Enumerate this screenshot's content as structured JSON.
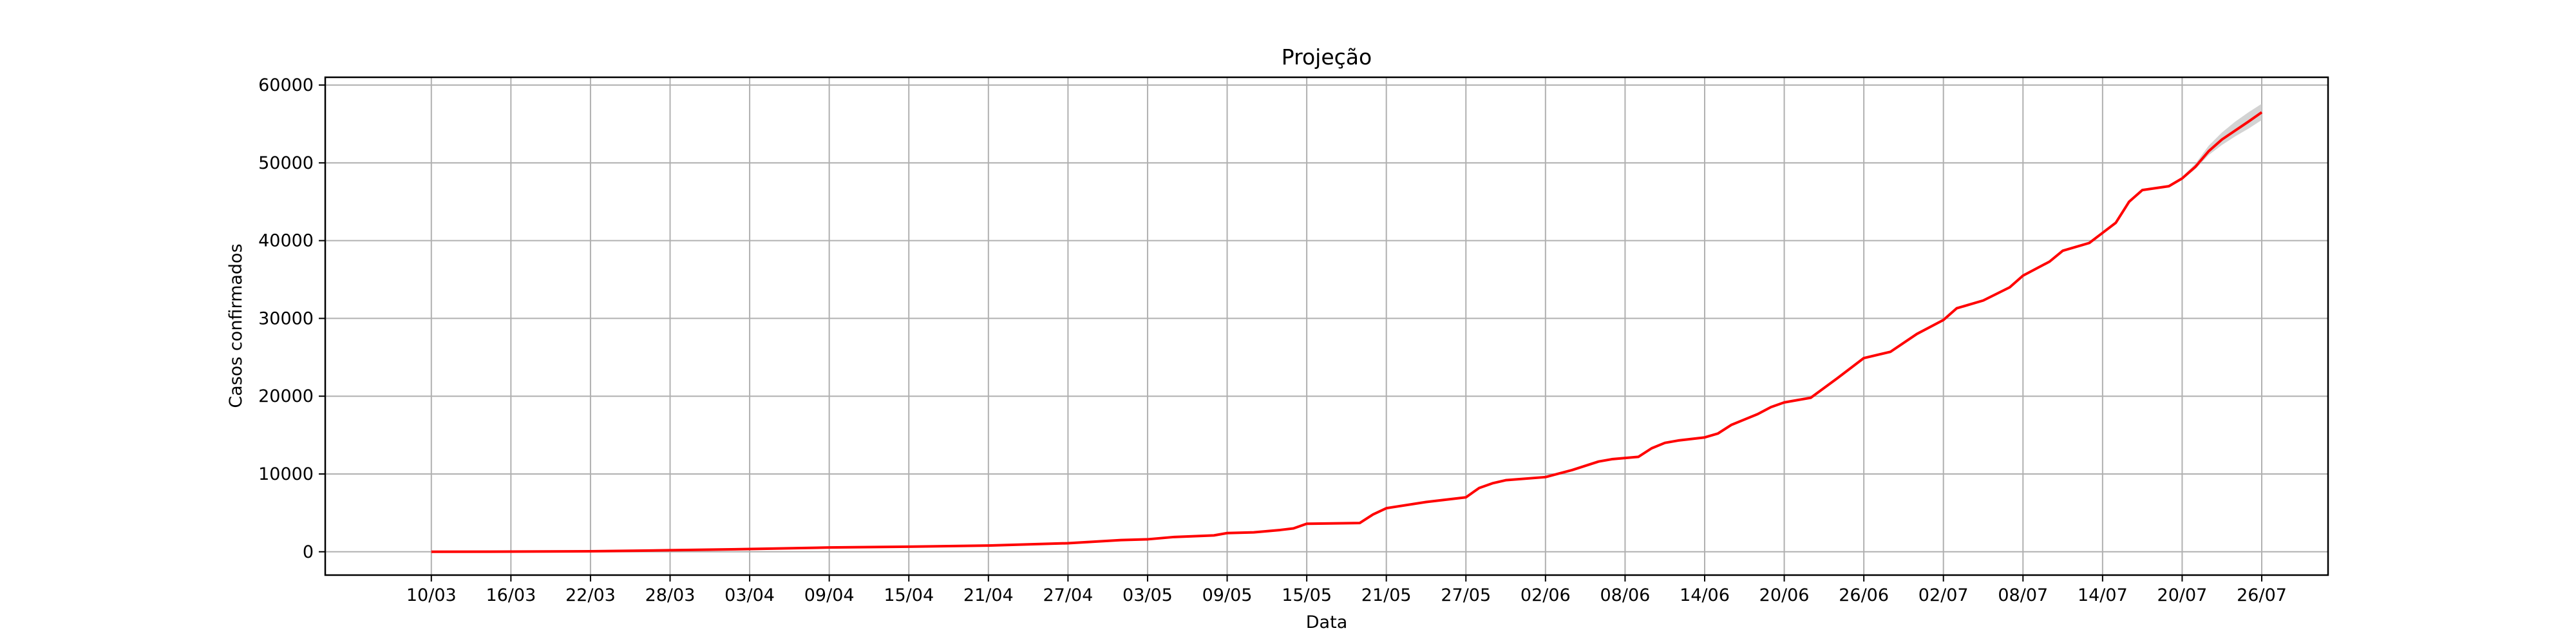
{
  "chart_data": {
    "type": "line",
    "title": "Projeção",
    "xlabel": "Data",
    "ylabel": "Casos confirmados",
    "grid": true,
    "legend": "none",
    "x_start": "2020-03-10",
    "x_end": "2020-07-26",
    "xlim": [
      "2020-03-02",
      "2020-07-31"
    ],
    "ylim": [
      -3000,
      61000
    ],
    "x_tick_labels": [
      "10/03",
      "16/03",
      "22/03",
      "28/03",
      "03/04",
      "09/04",
      "15/04",
      "21/04",
      "27/04",
      "03/05",
      "09/05",
      "15/05",
      "21/05",
      "27/05",
      "02/06",
      "08/06",
      "14/06",
      "20/06",
      "26/06",
      "02/07",
      "08/07",
      "14/07",
      "20/07",
      "26/07"
    ],
    "y_ticks": [
      0,
      10000,
      20000,
      30000,
      40000,
      50000,
      60000
    ],
    "y_tick_labels": [
      "0",
      "10000",
      "20000",
      "30000",
      "40000",
      "50000",
      "60000"
    ],
    "series": [
      {
        "color": "#ff0000",
        "points": [
          [
            "10/03",
            0
          ],
          [
            "16/03",
            20
          ],
          [
            "22/03",
            60
          ],
          [
            "26/03",
            150
          ],
          [
            "28/03",
            200
          ],
          [
            "03/04",
            350
          ],
          [
            "09/04",
            550
          ],
          [
            "15/04",
            650
          ],
          [
            "21/04",
            800
          ],
          [
            "27/04",
            1100
          ],
          [
            "01/05",
            1500
          ],
          [
            "03/05",
            1600
          ],
          [
            "05/05",
            1900
          ],
          [
            "08/05",
            2100
          ],
          [
            "09/05",
            2400
          ],
          [
            "11/05",
            2500
          ],
          [
            "13/05",
            2800
          ],
          [
            "14/05",
            3000
          ],
          [
            "15/05",
            3600
          ],
          [
            "19/05",
            3700
          ],
          [
            "20/05",
            4800
          ],
          [
            "21/05",
            5600
          ],
          [
            "24/05",
            6400
          ],
          [
            "27/05",
            7000
          ],
          [
            "28/05",
            8200
          ],
          [
            "29/05",
            8800
          ],
          [
            "30/05",
            9200
          ],
          [
            "02/06",
            9600
          ],
          [
            "04/06",
            10500
          ],
          [
            "06/06",
            11600
          ],
          [
            "07/06",
            11900
          ],
          [
            "09/06",
            12200
          ],
          [
            "10/06",
            13300
          ],
          [
            "11/06",
            14000
          ],
          [
            "12/06",
            14300
          ],
          [
            "14/06",
            14700
          ],
          [
            "15/06",
            15200
          ],
          [
            "16/06",
            16300
          ],
          [
            "17/06",
            17000
          ],
          [
            "18/06",
            17700
          ],
          [
            "19/06",
            18600
          ],
          [
            "20/06",
            19200
          ],
          [
            "22/06",
            19800
          ],
          [
            "24/06",
            22300
          ],
          [
            "26/06",
            24900
          ],
          [
            "28/06",
            25700
          ],
          [
            "30/06",
            28000
          ],
          [
            "02/07",
            29800
          ],
          [
            "03/07",
            31300
          ],
          [
            "05/07",
            32300
          ],
          [
            "07/07",
            34000
          ],
          [
            "08/07",
            35500
          ],
          [
            "10/07",
            37300
          ],
          [
            "11/07",
            38700
          ],
          [
            "13/07",
            39700
          ],
          [
            "14/07",
            41000
          ],
          [
            "15/07",
            42300
          ],
          [
            "16/07",
            45000
          ],
          [
            "17/07",
            46500
          ],
          [
            "19/07",
            47000
          ],
          [
            "20/07",
            48000
          ],
          [
            "21/07",
            49500
          ],
          [
            "22/07",
            51500
          ],
          [
            "23/07",
            53000
          ],
          [
            "25/07",
            55300
          ],
          [
            "26/07",
            56500
          ]
        ]
      }
    ],
    "confidence_band": {
      "color": "#c8c8c8",
      "points": [
        [
          "20/07",
          47800,
          48200
        ],
        [
          "21/07",
          49200,
          49900
        ],
        [
          "22/07",
          51000,
          52200
        ],
        [
          "23/07",
          52300,
          53900
        ],
        [
          "24/07",
          53400,
          55300
        ],
        [
          "25/07",
          54400,
          56500
        ],
        [
          "26/07",
          55500,
          57600
        ]
      ]
    }
  }
}
